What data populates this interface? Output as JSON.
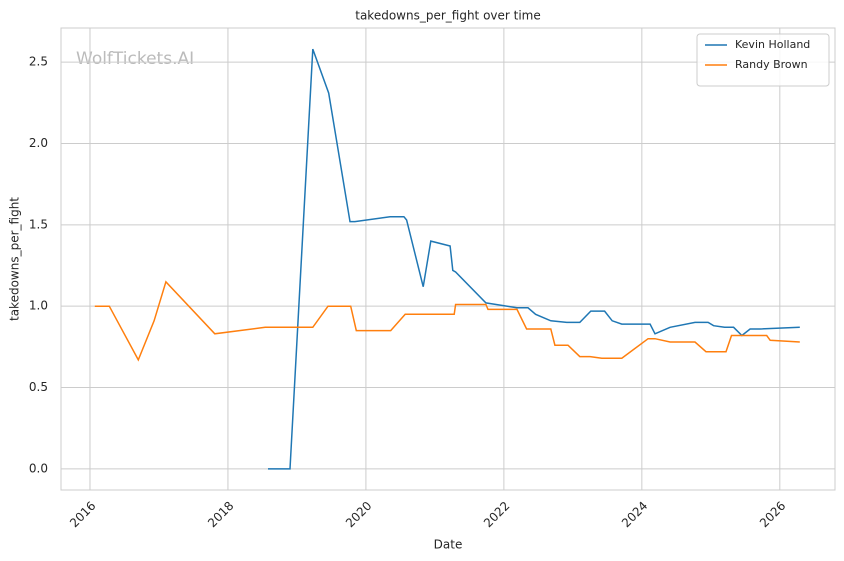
{
  "chart_data": {
    "type": "line",
    "title": "takedowns_per_fight over time",
    "xlabel": "Date",
    "ylabel": "takedowns_per_fight",
    "watermark": "WolfTickets.AI",
    "xlim": [
      2015.58,
      2026.8
    ],
    "xticks": [
      2016,
      2018,
      2020,
      2022,
      2024,
      2026
    ],
    "ylim": [
      -0.13,
      2.71
    ],
    "yticks": [
      {
        "value": 0,
        "label": "0.0"
      },
      0.5,
      {
        "value": 1,
        "label": "1.0"
      },
      1.5,
      {
        "value": 2,
        "label": "2.0"
      },
      2.5
    ],
    "grid": true,
    "legend": "upper right",
    "series": [
      {
        "name": "Kevin Holland",
        "color": "#1f77b4",
        "x": [
          2018.58,
          2018.9,
          2019.23,
          2019.46,
          2019.77,
          2019.84,
          2020.35,
          2020.55,
          2020.59,
          2020.83,
          2020.94,
          2021.22,
          2021.26,
          2021.3,
          2021.74,
          2022.19,
          2022.35,
          2022.46,
          2022.68,
          2022.91,
          2023.1,
          2023.26,
          2023.46,
          2023.57,
          2023.71,
          2024.12,
          2024.19,
          2024.41,
          2024.77,
          2024.96,
          2025.04,
          2025.2,
          2025.33,
          2025.45,
          2025.57,
          2025.71,
          2026.29
        ],
        "values": [
          0,
          0,
          2.58,
          2.31,
          1.52,
          1.52,
          1.55,
          1.55,
          1.53,
          1.12,
          1.4,
          1.37,
          1.22,
          1.21,
          1.02,
          0.99,
          0.99,
          0.95,
          0.91,
          0.9,
          0.9,
          0.97,
          0.97,
          0.91,
          0.89,
          0.89,
          0.83,
          0.87,
          0.9,
          0.9,
          0.88,
          0.87,
          0.87,
          0.82,
          0.86,
          0.86,
          0.87
        ]
      },
      {
        "name": "Randy Brown",
        "color": "#ff7f0e",
        "x": [
          2016.07,
          2016.28,
          2016.7,
          2016.93,
          2017.1,
          2017.81,
          2018.54,
          2019.23,
          2019.45,
          2019.78,
          2019.86,
          2020.36,
          2020.57,
          2021.28,
          2021.3,
          2021.74,
          2021.77,
          2022.19,
          2022.33,
          2022.68,
          2022.74,
          2022.93,
          2023.1,
          2023.25,
          2023.42,
          2023.71,
          2024.09,
          2024.19,
          2024.41,
          2024.77,
          2024.93,
          2025.22,
          2025.3,
          2025.81,
          2025.86,
          2026.29
        ],
        "values": [
          1.0,
          1.0,
          0.67,
          0.91,
          1.15,
          0.83,
          0.87,
          0.87,
          1.0,
          1.0,
          0.85,
          0.85,
          0.95,
          0.95,
          1.01,
          1.01,
          0.98,
          0.98,
          0.86,
          0.86,
          0.76,
          0.76,
          0.69,
          0.69,
          0.68,
          0.68,
          0.8,
          0.8,
          0.78,
          0.78,
          0.72,
          0.72,
          0.82,
          0.82,
          0.79,
          0.78
        ]
      }
    ]
  }
}
